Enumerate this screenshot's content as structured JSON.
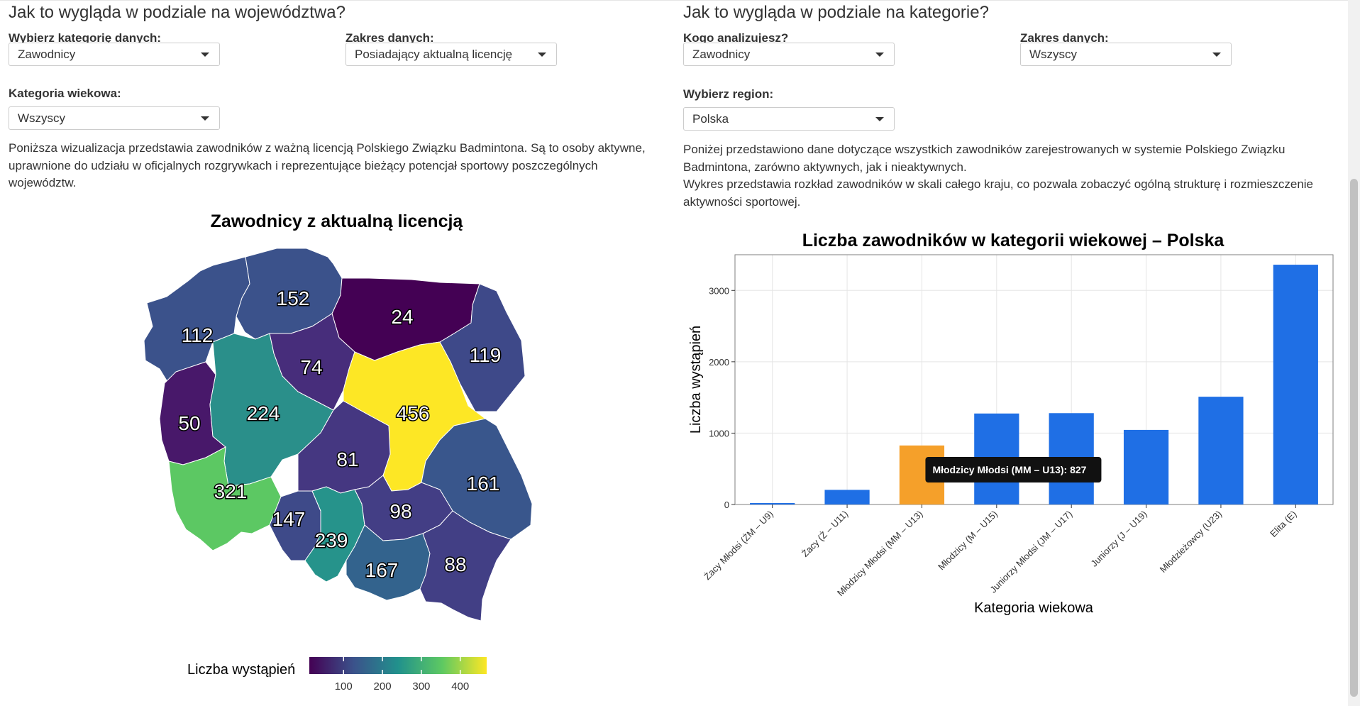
{
  "left": {
    "title": "Jak to wygląda w podziale na województwa?",
    "category_label": "Wybierz kategorię danych:",
    "category_value": "Zawodnicy",
    "range_label": "Zakres danych:",
    "range_value": "Posiadający aktualną licencję",
    "age_label": "Kategoria wiekowa:",
    "age_value": "Wszyscy",
    "description": "Poniższa wizualizacja przedstawia zawodników z ważną licencją Polskiego Związku Badmintona. Są to osoby aktywne, uprawnione do udziału w oficjalnych rozgrywkach i reprezentujące bieżący potencjał sportowy poszczególnych województw.",
    "map_title": "Zawodnicy z aktualną licencją",
    "legend_title": "Liczba wystąpień",
    "legend_ticks": [
      "100",
      "200",
      "300",
      "400"
    ],
    "regions": [
      {
        "name": "zachodniopomorskie",
        "value": "112",
        "color": "#3b528b"
      },
      {
        "name": "pomorskie",
        "value": "152",
        "color": "#3b528b"
      },
      {
        "name": "warminsko-mazurskie",
        "value": "24",
        "color": "#440154"
      },
      {
        "name": "podlaskie",
        "value": "119",
        "color": "#3e4989"
      },
      {
        "name": "lubuskie",
        "value": "50",
        "color": "#48186a"
      },
      {
        "name": "wielkopolskie",
        "value": "224",
        "color": "#2a8f8a"
      },
      {
        "name": "kujawsko-pomorskie",
        "value": "74",
        "color": "#472d7b"
      },
      {
        "name": "mazowieckie",
        "value": "456",
        "color": "#fde725"
      },
      {
        "name": "lodzkie",
        "value": "81",
        "color": "#453781"
      },
      {
        "name": "lubelskie",
        "value": "161",
        "color": "#39568c"
      },
      {
        "name": "dolnoslaskie",
        "value": "321",
        "color": "#5cc863"
      },
      {
        "name": "opolskie",
        "value": "147",
        "color": "#3e4a89"
      },
      {
        "name": "slaskie",
        "value": "239",
        "color": "#26938b"
      },
      {
        "name": "swietokrzyskie",
        "value": "98",
        "color": "#433e85"
      },
      {
        "name": "malopolskie",
        "value": "167",
        "color": "#33638d"
      },
      {
        "name": "podkarpackie",
        "value": "88",
        "color": "#423f85"
      }
    ]
  },
  "right": {
    "title": "Jak to wygląda w podziale na kategorie?",
    "who_label": "Kogo analizujesz?",
    "who_value": "Zawodnicy",
    "range_label": "Zakres danych:",
    "range_value": "Wszyscy",
    "region_label": "Wybierz region:",
    "region_value": "Polska",
    "desc1": "Poniżej przedstawiono dane dotyczące wszystkich zawodników zarejestrowanych w systemie Polskiego Związku Badmintona, zarówno aktywnych, jak i nieaktywnych.",
    "desc2": "Wykres przedstawia rozkład zawodników w skali całego kraju, co pozwala zobaczyć ogólną strukturę i rozmieszczenie aktywności sportowej.",
    "tooltip": "Młodzicy Młodsi (MM – U13): 827"
  },
  "chart_data": {
    "type": "bar",
    "title": "Liczba zawodników w kategorii wiekowej – Polska",
    "xlabel": "Kategoria wiekowa",
    "ylabel": "Liczba wystąpień",
    "categories": [
      "Żacy Młodsi (ŻM – U9)",
      "Żacy (Ż – U11)",
      "Młodzicy Młodsi (MM – U13)",
      "Młodzicy (M – U15)",
      "Juniorzy Młodsi (JM – U17)",
      "Juniorzy (J – U19)",
      "Młodzieżowcy (U23)",
      "Elita (E)"
    ],
    "values": [
      20,
      205,
      827,
      1275,
      1280,
      1045,
      1510,
      3360
    ],
    "highlighted_index": 2,
    "ylim": [
      0,
      3500
    ],
    "yticks": [
      "0",
      "1000",
      "2000",
      "3000"
    ],
    "colors": {
      "bar": "#1f6fe5",
      "highlight": "#f5a02a"
    },
    "grid": true
  }
}
